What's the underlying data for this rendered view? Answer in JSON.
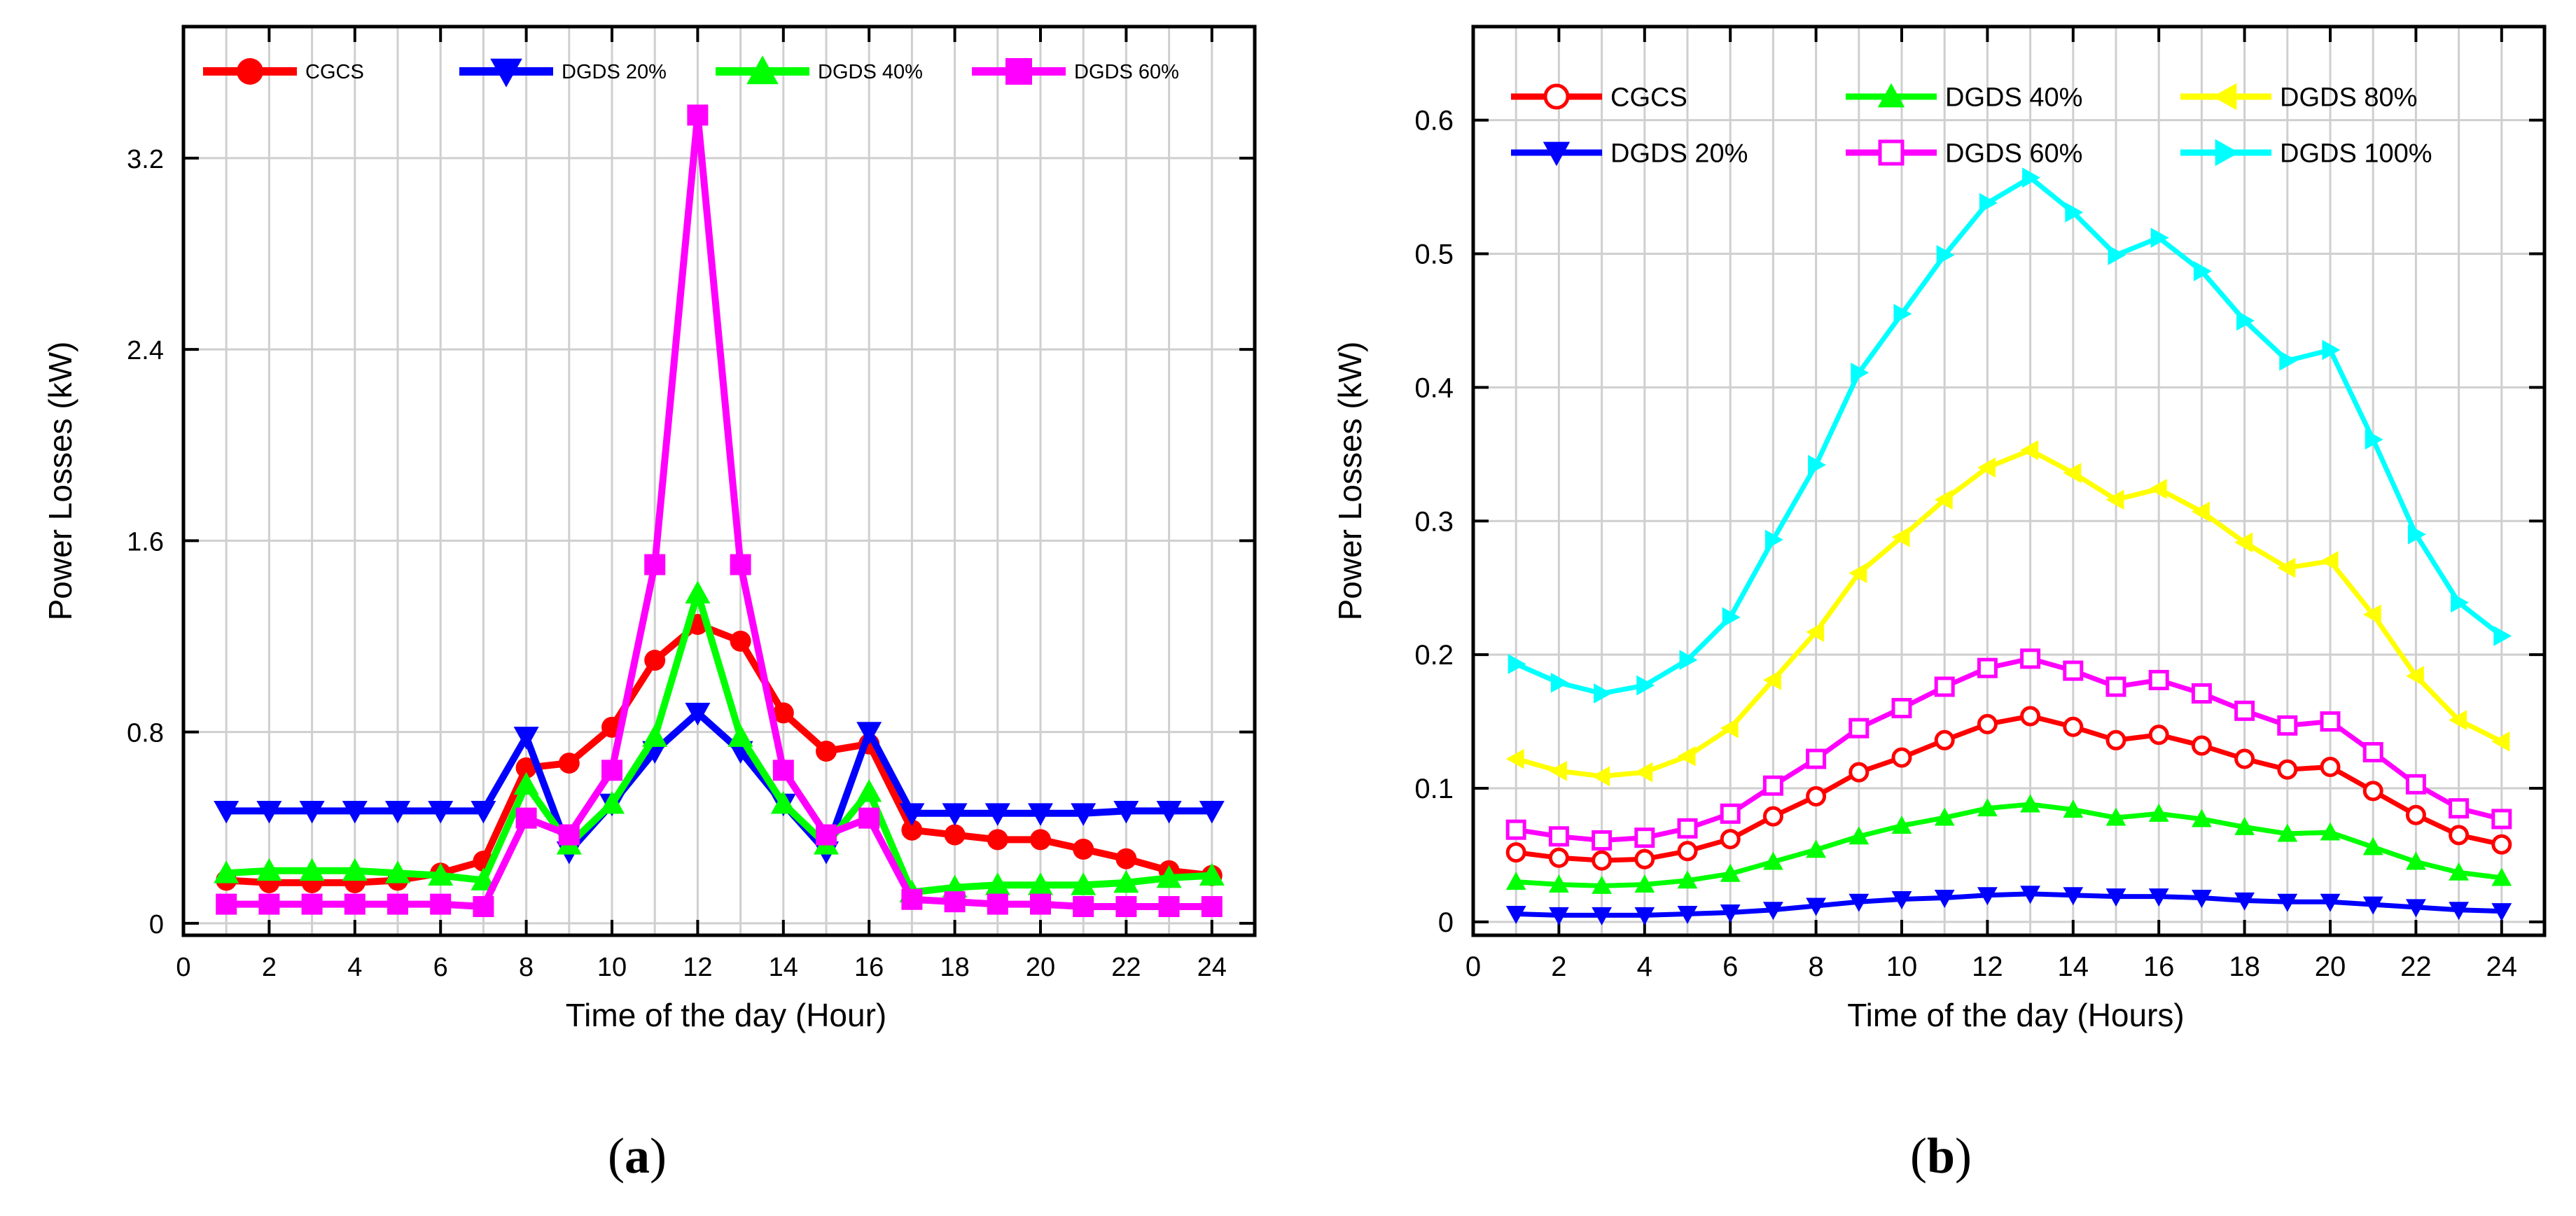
{
  "chart_data": [
    {
      "type": "line",
      "panel": "(a)",
      "panel_letter": "a",
      "xlabel": "Time of the day (Hour)",
      "ylabel": "Power Losses (kW)",
      "xlim": [
        0,
        25
      ],
      "ylim": [
        -0.05,
        3.75
      ],
      "xticks": [
        0,
        2,
        4,
        6,
        8,
        10,
        12,
        14,
        16,
        18,
        20,
        22,
        24
      ],
      "yticks": [
        0,
        0.8,
        1.6,
        2.4,
        3.2
      ],
      "ytick_labels": [
        "0",
        "0.8",
        "1.6",
        "2.4",
        "3.2"
      ],
      "grid": true,
      "legend_position": "top",
      "x": [
        1,
        2,
        3,
        4,
        5,
        6,
        7,
        8,
        9,
        10,
        11,
        12,
        13,
        14,
        15,
        16,
        17,
        18,
        19,
        20,
        21,
        22,
        23,
        24
      ],
      "series": [
        {
          "name": "CGCS",
          "color": "#ff0000",
          "marker": "circle",
          "values": [
            0.18,
            0.17,
            0.17,
            0.17,
            0.18,
            0.21,
            0.26,
            0.65,
            0.67,
            0.82,
            1.1,
            1.25,
            1.18,
            0.88,
            0.72,
            0.75,
            0.39,
            0.37,
            0.35,
            0.35,
            0.31,
            0.27,
            0.22,
            0.2
          ]
        },
        {
          "name": "DGDS 20%",
          "color": "#0000ff",
          "marker": "triangle-down",
          "values": [
            0.47,
            0.47,
            0.47,
            0.47,
            0.47,
            0.47,
            0.47,
            0.78,
            0.3,
            0.5,
            0.72,
            0.88,
            0.72,
            0.5,
            0.3,
            0.8,
            0.46,
            0.46,
            0.46,
            0.46,
            0.46,
            0.47,
            0.47,
            0.47
          ]
        },
        {
          "name": "DGDS 40%",
          "color": "#00ff00",
          "marker": "triangle-up",
          "values": [
            0.21,
            0.22,
            0.22,
            0.22,
            0.21,
            0.2,
            0.18,
            0.58,
            0.33,
            0.5,
            0.78,
            1.38,
            0.78,
            0.5,
            0.33,
            0.55,
            0.13,
            0.15,
            0.16,
            0.16,
            0.16,
            0.17,
            0.19,
            0.2
          ]
        },
        {
          "name": "DGDS 60%",
          "color": "#ff00ff",
          "marker": "square",
          "values": [
            0.08,
            0.08,
            0.08,
            0.08,
            0.08,
            0.08,
            0.07,
            0.44,
            0.37,
            0.64,
            1.5,
            3.38,
            1.5,
            0.64,
            0.37,
            0.44,
            0.1,
            0.09,
            0.08,
            0.08,
            0.07,
            0.07,
            0.07,
            0.07
          ]
        }
      ]
    },
    {
      "type": "line",
      "panel": "(b)",
      "panel_letter": "b",
      "xlabel": "Time of the day (Hours)",
      "ylabel": "Power Losses (kW)",
      "xlim": [
        0,
        25
      ],
      "ylim": [
        -0.01,
        0.67
      ],
      "xticks": [
        0,
        2,
        4,
        6,
        8,
        10,
        12,
        14,
        16,
        18,
        20,
        22,
        24
      ],
      "yticks": [
        0,
        0.1,
        0.2,
        0.3,
        0.4,
        0.5,
        0.6
      ],
      "ytick_labels": [
        "0",
        "0.1",
        "0.2",
        "0.3",
        "0.4",
        "0.5",
        "0.6"
      ],
      "grid": true,
      "legend_position": "top",
      "x": [
        1,
        2,
        3,
        4,
        5,
        6,
        7,
        8,
        9,
        10,
        11,
        12,
        13,
        14,
        15,
        16,
        17,
        18,
        19,
        20,
        21,
        22,
        23,
        24
      ],
      "series": [
        {
          "name": "CGCS",
          "color": "#ff0000",
          "marker": "circle-open",
          "values": [
            0.052,
            0.048,
            0.046,
            0.047,
            0.053,
            0.062,
            0.079,
            0.094,
            0.112,
            0.123,
            0.136,
            0.148,
            0.154,
            0.146,
            0.136,
            0.14,
            0.132,
            0.122,
            0.114,
            0.116,
            0.098,
            0.08,
            0.065,
            0.058
          ]
        },
        {
          "name": "DGDS 20%",
          "color": "#0000ff",
          "marker": "triangle-down",
          "values": [
            0.006,
            0.005,
            0.005,
            0.005,
            0.006,
            0.007,
            0.009,
            0.012,
            0.015,
            0.017,
            0.018,
            0.02,
            0.021,
            0.02,
            0.019,
            0.019,
            0.018,
            0.016,
            0.015,
            0.015,
            0.013,
            0.011,
            0.009,
            0.008
          ]
        },
        {
          "name": "DGDS 40%",
          "color": "#00ff00",
          "marker": "triangle-up",
          "values": [
            0.03,
            0.028,
            0.027,
            0.028,
            0.031,
            0.036,
            0.045,
            0.054,
            0.064,
            0.072,
            0.078,
            0.085,
            0.088,
            0.084,
            0.078,
            0.081,
            0.077,
            0.071,
            0.066,
            0.067,
            0.056,
            0.045,
            0.037,
            0.033
          ]
        },
        {
          "name": "DGDS 60%",
          "color": "#ff00ff",
          "marker": "square-open",
          "values": [
            0.069,
            0.064,
            0.061,
            0.063,
            0.07,
            0.081,
            0.102,
            0.122,
            0.145,
            0.16,
            0.176,
            0.19,
            0.197,
            0.188,
            0.176,
            0.181,
            0.171,
            0.158,
            0.147,
            0.15,
            0.127,
            0.103,
            0.085,
            0.077
          ]
        },
        {
          "name": "DGDS 80%",
          "color": "#ffff00",
          "marker": "triangle-left",
          "values": [
            0.122,
            0.113,
            0.109,
            0.112,
            0.124,
            0.145,
            0.181,
            0.217,
            0.261,
            0.288,
            0.316,
            0.34,
            0.353,
            0.336,
            0.316,
            0.324,
            0.307,
            0.284,
            0.265,
            0.27,
            0.23,
            0.184,
            0.151,
            0.135
          ]
        },
        {
          "name": "DGDS 100%",
          "color": "#00ffff",
          "marker": "triangle-right",
          "values": [
            0.193,
            0.179,
            0.171,
            0.177,
            0.196,
            0.228,
            0.286,
            0.342,
            0.411,
            0.455,
            0.499,
            0.538,
            0.557,
            0.531,
            0.499,
            0.512,
            0.487,
            0.45,
            0.42,
            0.428,
            0.361,
            0.29,
            0.239,
            0.214
          ]
        }
      ]
    }
  ]
}
